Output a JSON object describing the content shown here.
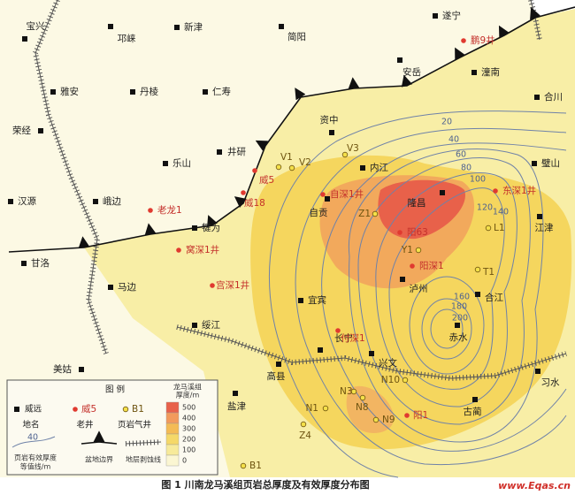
{
  "cities": [
    "宝兴",
    "邛崃",
    "新津",
    "简阳",
    "遂宁",
    "雅安",
    "丹棱",
    "仁寿",
    "安岳",
    "潼南",
    "合川",
    "荣经",
    "资中",
    "乐山",
    "井研",
    "内江",
    "璧山",
    "汉源",
    "峨边",
    "犍为",
    "自贡",
    "隆昌",
    "江津",
    "甘洛",
    "马边",
    "泸州",
    "合江",
    "宜宾",
    "绥江",
    "长宁",
    "赤水",
    "美姑",
    "兴文",
    "高县",
    "习水",
    "盐津",
    "古蔺"
  ],
  "old_wells": [
    "鹏9井",
    "威5",
    "威18",
    "老龙1",
    "窝深1井",
    "宫深1井",
    "自深1井",
    "阳63",
    "东深1井",
    "阳深1",
    "付深1",
    "阳1"
  ],
  "gas_wells": [
    "V1",
    "V2",
    "V3",
    "Z1",
    "Y1",
    "L1",
    "T1",
    "N10",
    "N3",
    "N1",
    "N8",
    "N9",
    "Z4",
    "B1"
  ],
  "contours": [
    20,
    40,
    60,
    80,
    100,
    120,
    140,
    160,
    180,
    200
  ],
  "legend": {
    "title": "图 例",
    "city_sample": "威远",
    "city_label": "地名",
    "old_well_sample": "威5",
    "old_well_label": "老井",
    "gas_well_sample": "B1",
    "gas_well_label": "页岩气井",
    "thickness_title": [
      "龙马溪组",
      "厚度/m"
    ],
    "thickness_scale": [
      500,
      400,
      300,
      200,
      100,
      0
    ],
    "contour_sample": 40,
    "contour_label": [
      "页岩有效厚度",
      "等值线/m"
    ],
    "boundary_label": "盆地边界",
    "erosion_label": "地层剥蚀线"
  },
  "caption": "图 1  川南龙马溪组页岩总厚度及有效厚度分布图",
  "watermark": "www.Eqas.cn"
}
